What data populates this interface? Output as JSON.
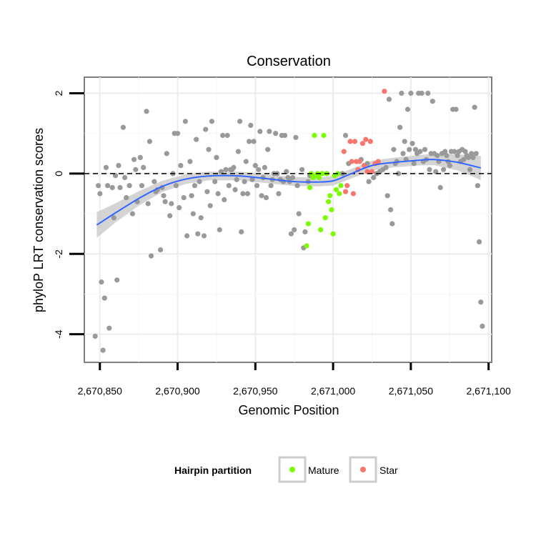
{
  "chart_data": {
    "type": "scatter",
    "title": "Conservation",
    "xlabel": "Genomic Position",
    "ylabel": "phyloP LRT conservation scores",
    "xlim": [
      2670840,
      2671102
    ],
    "ylim": [
      -4.7,
      2.4
    ],
    "x_ticks": [
      2670850,
      2670900,
      2670950,
      2671000,
      2671050,
      2671100
    ],
    "x_tick_labels": [
      "2,670,850",
      "2,670,900",
      "2,670,950",
      "2,671,000",
      "2,671,050",
      "2,671,100"
    ],
    "y_ticks": [
      -4,
      -2,
      0,
      2
    ],
    "y_tick_labels": [
      "-4",
      "-2",
      "0",
      "2"
    ],
    "reference_line": {
      "y": 0,
      "style": "dashed"
    },
    "colors": {
      "other": "#999999",
      "Mature": "#7CFC00",
      "Star": "#F8766D",
      "smooth": "#3366FF",
      "band": "#CCCCCC"
    },
    "legend": {
      "title": "Hairpin partition",
      "position": "bottom",
      "entries": [
        {
          "label": "Mature",
          "color": "#7CFC00"
        },
        {
          "label": "Star",
          "color": "#F8766D"
        }
      ]
    },
    "smooth": {
      "x": [
        2670848,
        2670860,
        2670875,
        2670890,
        2670905,
        2670920,
        2670940,
        2670960,
        2670975,
        2670990,
        2671000,
        2671010,
        2671025,
        2671040,
        2671055,
        2671065,
        2671080,
        2671095
      ],
      "y": [
        -1.28,
        -0.98,
        -0.62,
        -0.32,
        -0.14,
        -0.06,
        -0.06,
        -0.14,
        -0.2,
        -0.21,
        -0.18,
        -0.03,
        0.2,
        0.28,
        0.33,
        0.35,
        0.28,
        0.14
      ],
      "se": [
        0.32,
        0.24,
        0.18,
        0.14,
        0.12,
        0.11,
        0.11,
        0.11,
        0.11,
        0.11,
        0.12,
        0.12,
        0.12,
        0.12,
        0.13,
        0.14,
        0.2,
        0.3
      ]
    },
    "series": [
      {
        "name": "other",
        "points": [
          [
            2670847,
            -4.05
          ],
          [
            2670849,
            -0.3
          ],
          [
            2670850,
            -0.5
          ],
          [
            2670851,
            -2.7
          ],
          [
            2670852,
            -4.4
          ],
          [
            2670853,
            -3.1
          ],
          [
            2670854,
            0.15
          ],
          [
            2670855,
            -0.3
          ],
          [
            2670856,
            -3.85
          ],
          [
            2670858,
            -0.35
          ],
          [
            2670859,
            -1.1
          ],
          [
            2670860,
            -0.05
          ],
          [
            2670861,
            -2.65
          ],
          [
            2670862,
            0.2
          ],
          [
            2670863,
            -0.35
          ],
          [
            2670865,
            1.15
          ],
          [
            2670866,
            -0.1
          ],
          [
            2670867,
            -0.6
          ],
          [
            2670869,
            -0.3
          ],
          [
            2670871,
            -1.0
          ],
          [
            2670872,
            0.35
          ],
          [
            2670873,
            0.1
          ],
          [
            2670874,
            -0.7
          ],
          [
            2670876,
            0.4
          ],
          [
            2670877,
            -0.3
          ],
          [
            2670878,
            0.15
          ],
          [
            2670880,
            1.55
          ],
          [
            2670881,
            -0.75
          ],
          [
            2670882,
            0.8
          ],
          [
            2670883,
            -2.05
          ],
          [
            2670885,
            -0.2
          ],
          [
            2670886,
            -0.45
          ],
          [
            2670887,
            -0.4
          ],
          [
            2670889,
            -1.9
          ],
          [
            2670890,
            -0.35
          ],
          [
            2670891,
            -0.55
          ],
          [
            2670892,
            -0.7
          ],
          [
            2670893,
            0.5
          ],
          [
            2670895,
            -1.05
          ],
          [
            2670896,
            -0.75
          ],
          [
            2670897,
            0.0
          ],
          [
            2670898,
            1.0
          ],
          [
            2670899,
            -0.3
          ],
          [
            2670900,
            1.0
          ],
          [
            2670901,
            -0.85
          ],
          [
            2670902,
            0.2
          ],
          [
            2670904,
            -0.6
          ],
          [
            2670905,
            1.3
          ],
          [
            2670906,
            -1.55
          ],
          [
            2670908,
            0.3
          ],
          [
            2670909,
            -0.55
          ],
          [
            2670910,
            -1.0
          ],
          [
            2670911,
            -0.3
          ],
          [
            2670912,
            0.85
          ],
          [
            2670913,
            -1.5
          ],
          [
            2670914,
            -0.2
          ],
          [
            2670915,
            -1.1
          ],
          [
            2670917,
            -1.55
          ],
          [
            2670918,
            1.1
          ],
          [
            2670919,
            -0.45
          ],
          [
            2670920,
            0.6
          ],
          [
            2670921,
            -0.8
          ],
          [
            2670922,
            1.3
          ],
          [
            2670924,
            -0.2
          ],
          [
            2670925,
            0.4
          ],
          [
            2670926,
            -0.5
          ],
          [
            2670927,
            -1.4
          ],
          [
            2670928,
            0.05
          ],
          [
            2670929,
            0.95
          ],
          [
            2670930,
            -0.65
          ],
          [
            2670931,
            0.1
          ],
          [
            2670932,
            0.95
          ],
          [
            2670933,
            -0.3
          ],
          [
            2670934,
            0.1
          ],
          [
            2670935,
            0.1
          ],
          [
            2670936,
            0.15
          ],
          [
            2670937,
            -0.4
          ],
          [
            2670938,
            -0.15
          ],
          [
            2670939,
            0.55
          ],
          [
            2670940,
            1.3
          ],
          [
            2670941,
            -1.45
          ],
          [
            2670942,
            -0.5
          ],
          [
            2670943,
            -0.2
          ],
          [
            2670944,
            0.3
          ],
          [
            2670945,
            -0.5
          ],
          [
            2670946,
            0.8
          ],
          [
            2670947,
            1.2
          ],
          [
            2670948,
            -0.15
          ],
          [
            2670949,
            0.8
          ],
          [
            2670950,
            0.2
          ],
          [
            2670951,
            -0.3
          ],
          [
            2670952,
            0.1
          ],
          [
            2670953,
            1.05
          ],
          [
            2670954,
            -0.55
          ],
          [
            2670955,
            -0.1
          ],
          [
            2670956,
            0.15
          ],
          [
            2670957,
            -0.6
          ],
          [
            2670958,
            0.6
          ],
          [
            2670959,
            1.05
          ],
          [
            2670960,
            -0.3
          ],
          [
            2670961,
            -0.15
          ],
          [
            2670962,
            0.0
          ],
          [
            2670963,
            1.0
          ],
          [
            2670964,
            0.0
          ],
          [
            2670965,
            -0.5
          ],
          [
            2670966,
            -0.15
          ],
          [
            2670967,
            0.95
          ],
          [
            2670968,
            -0.2
          ],
          [
            2670969,
            0.95
          ],
          [
            2670970,
            0.05
          ],
          [
            2670971,
            -0.1
          ],
          [
            2670972,
            -0.2
          ],
          [
            2670973,
            -1.5
          ],
          [
            2670974,
            -0.1
          ],
          [
            2670975,
            -1.4
          ],
          [
            2670976,
            0.9
          ],
          [
            2670977,
            -0.3
          ],
          [
            2670978,
            -1.0
          ],
          [
            2670980,
            0.1
          ],
          [
            2670981,
            -1.85
          ],
          [
            2670982,
            -1.45
          ],
          [
            2670984,
            -0.2
          ],
          [
            2670985,
            -0.05
          ],
          [
            2671006,
            0.0
          ],
          [
            2671008,
            0.95
          ],
          [
            2671010,
            0.25
          ],
          [
            2671018,
            0.35
          ],
          [
            2671022,
            0.25
          ],
          [
            2671023,
            -0.2
          ],
          [
            2671026,
            -0.1
          ],
          [
            2671028,
            0.0
          ],
          [
            2671030,
            0.05
          ],
          [
            2671032,
            0.1
          ],
          [
            2671034,
            0.15
          ],
          [
            2671035,
            -0.55
          ],
          [
            2671036,
            1.85
          ],
          [
            2671037,
            -0.9
          ],
          [
            2671038,
            -1.25
          ],
          [
            2671039,
            0.6
          ],
          [
            2671040,
            0.25
          ],
          [
            2671041,
            0.3
          ],
          [
            2671042,
            0.0
          ],
          [
            2671043,
            1.15
          ],
          [
            2671044,
            2.0
          ],
          [
            2671045,
            0.5
          ],
          [
            2671046,
            0.8
          ],
          [
            2671047,
            0.35
          ],
          [
            2671048,
            1.6
          ],
          [
            2671049,
            0.6
          ],
          [
            2671050,
            2.0
          ],
          [
            2671051,
            0.75
          ],
          [
            2671052,
            0.25
          ],
          [
            2671053,
            0.6
          ],
          [
            2671054,
            0.5
          ],
          [
            2671055,
            2.0
          ],
          [
            2671056,
            0.55
          ],
          [
            2671057,
            2.0
          ],
          [
            2671058,
            0.3
          ],
          [
            2671059,
            0.6
          ],
          [
            2671060,
            0.35
          ],
          [
            2671061,
            2.0
          ],
          [
            2671062,
            0.1
          ],
          [
            2671063,
            0.5
          ],
          [
            2671064,
            1.8
          ],
          [
            2671065,
            0.5
          ],
          [
            2671066,
            0.05
          ],
          [
            2671067,
            0.45
          ],
          [
            2671068,
            0.3
          ],
          [
            2671069,
            -0.35
          ],
          [
            2671070,
            0.5
          ],
          [
            2671071,
            0.1
          ],
          [
            2671072,
            0.55
          ],
          [
            2671073,
            0.45
          ],
          [
            2671074,
            0.3
          ],
          [
            2671075,
            0.2
          ],
          [
            2671076,
            0.55
          ],
          [
            2671077,
            1.6
          ],
          [
            2671078,
            0.55
          ],
          [
            2671079,
            1.6
          ],
          [
            2671080,
            0.45
          ],
          [
            2671081,
            0.55
          ],
          [
            2671082,
            0.3
          ],
          [
            2671083,
            0.6
          ],
          [
            2671084,
            0.35
          ],
          [
            2671085,
            0.55
          ],
          [
            2671086,
            0.45
          ],
          [
            2671087,
            0.4
          ],
          [
            2671088,
            0.1
          ],
          [
            2671089,
            0.5
          ],
          [
            2671090,
            0.4
          ],
          [
            2671091,
            1.65
          ],
          [
            2671092,
            0.5
          ],
          [
            2671093,
            -0.3
          ],
          [
            2671094,
            -1.7
          ],
          [
            2671095,
            -3.2
          ],
          [
            2671096,
            -3.8
          ]
        ]
      },
      {
        "name": "Mature",
        "points": [
          [
            2670983,
            -1.8
          ],
          [
            2670984,
            -1.25
          ],
          [
            2670985,
            -0.35
          ],
          [
            2670986,
            0.0
          ],
          [
            2670987,
            -0.1
          ],
          [
            2670988,
            0.95
          ],
          [
            2670989,
            -0.05
          ],
          [
            2670990,
            0.0
          ],
          [
            2670991,
            -0.1
          ],
          [
            2670992,
            -1.4
          ],
          [
            2670993,
            0.0
          ],
          [
            2670994,
            0.95
          ],
          [
            2670995,
            -1.1
          ],
          [
            2670996,
            0.0
          ],
          [
            2670997,
            -0.7
          ],
          [
            2670998,
            -0.55
          ],
          [
            2670999,
            -0.9
          ],
          [
            2671000,
            -1.5
          ],
          [
            2671001,
            -0.05
          ],
          [
            2671002,
            -0.4
          ],
          [
            2671003,
            0.0
          ],
          [
            2671004,
            -0.5
          ],
          [
            2671005,
            -0.3
          ]
        ]
      },
      {
        "name": "Star",
        "points": [
          [
            2671007,
            0.55
          ],
          [
            2671008,
            -0.45
          ],
          [
            2671009,
            -0.3
          ],
          [
            2671011,
            0.8
          ],
          [
            2671012,
            0.3
          ],
          [
            2671013,
            -0.5
          ],
          [
            2671014,
            0.8
          ],
          [
            2671015,
            0.3
          ],
          [
            2671016,
            0.1
          ],
          [
            2671017,
            0.3
          ],
          [
            2671019,
            0.75
          ],
          [
            2671020,
            0.2
          ],
          [
            2671021,
            0.85
          ],
          [
            2671022,
            0.05
          ],
          [
            2671024,
            0.8
          ],
          [
            2671025,
            0.05
          ],
          [
            2671027,
            0.25
          ],
          [
            2671029,
            0.3
          ],
          [
            2671033,
            2.05
          ]
        ]
      }
    ]
  }
}
